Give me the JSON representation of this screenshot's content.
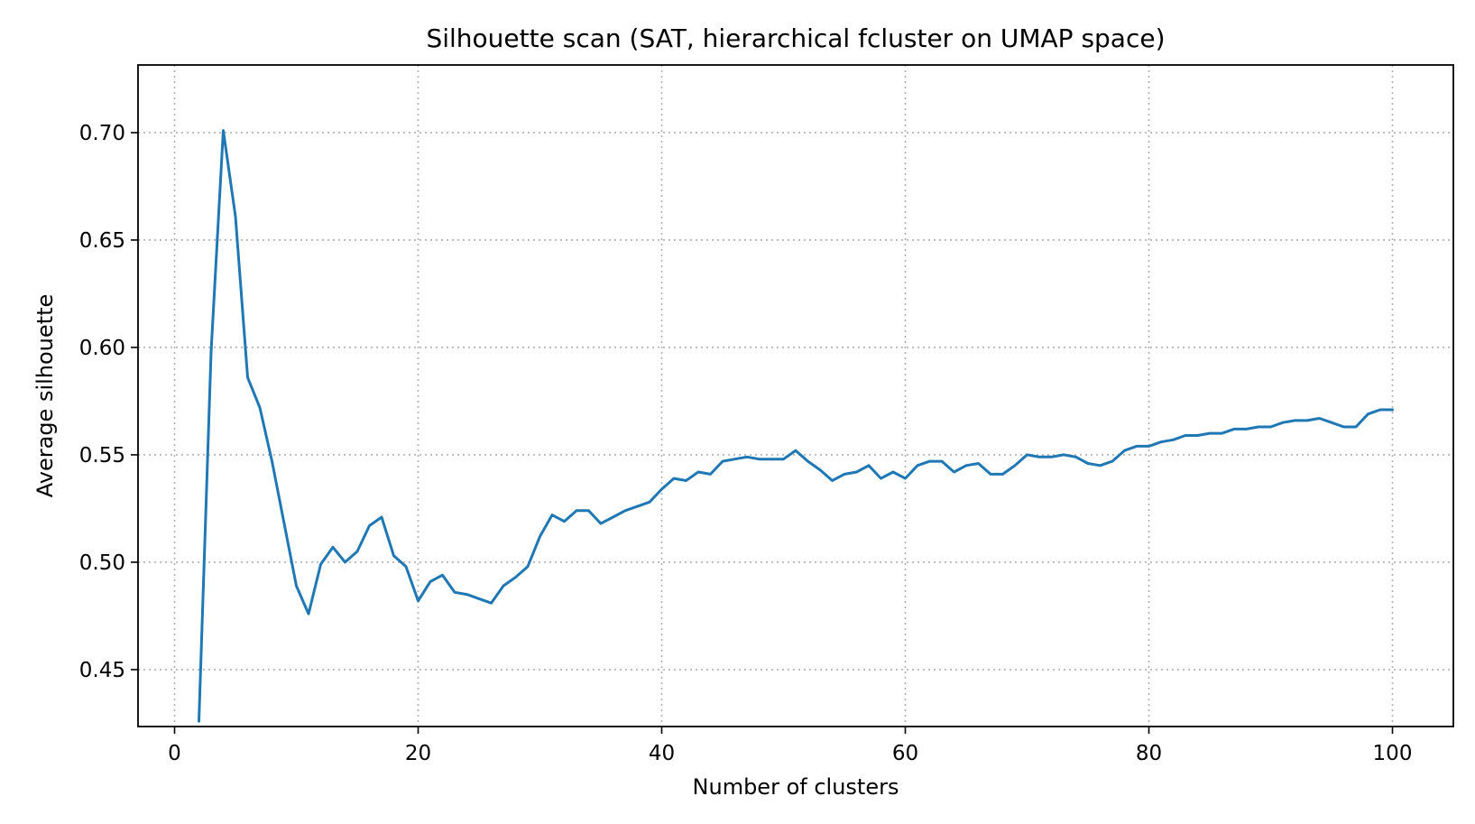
{
  "chart_data": {
    "type": "line",
    "title": "Silhouette scan (SAT, hierarchical fcluster on UMAP space)",
    "xlabel": "Number of clusters",
    "ylabel": "Average silhouette",
    "xlim": [
      -3,
      105
    ],
    "ylim": [
      0.4235,
      0.7315
    ],
    "xticks": [
      0,
      20,
      40,
      60,
      80,
      100
    ],
    "xtick_labels": [
      "0",
      "20",
      "40",
      "60",
      "80",
      "100"
    ],
    "yticks": [
      0.45,
      0.5,
      0.55,
      0.6,
      0.65,
      0.7
    ],
    "ytick_labels": [
      "0.45",
      "0.50",
      "0.55",
      "0.60",
      "0.65",
      "0.70"
    ],
    "grid": true,
    "series": [
      {
        "color": "#1f77b4",
        "x": [
          2,
          3,
          4,
          5,
          6,
          7,
          8,
          9,
          10,
          11,
          12,
          13,
          14,
          15,
          16,
          17,
          18,
          19,
          20,
          21,
          22,
          23,
          24,
          25,
          26,
          27,
          28,
          29,
          30,
          31,
          32,
          33,
          34,
          35,
          36,
          37,
          38,
          39,
          40,
          41,
          42,
          43,
          44,
          45,
          46,
          47,
          48,
          49,
          50,
          51,
          52,
          53,
          54,
          55,
          56,
          57,
          58,
          59,
          60,
          61,
          62,
          63,
          64,
          65,
          66,
          67,
          68,
          69,
          70,
          71,
          72,
          73,
          74,
          75,
          76,
          77,
          78,
          79,
          80,
          81,
          82,
          83,
          84,
          85,
          86,
          87,
          88,
          89,
          90,
          91,
          92,
          93,
          94,
          95,
          96,
          97,
          98,
          99,
          100
        ],
        "y": [
          0.426,
          0.598,
          0.701,
          0.661,
          0.586,
          0.572,
          0.547,
          0.518,
          0.489,
          0.476,
          0.499,
          0.507,
          0.5,
          0.505,
          0.517,
          0.521,
          0.503,
          0.498,
          0.482,
          0.491,
          0.494,
          0.486,
          0.485,
          0.483,
          0.481,
          0.489,
          0.493,
          0.498,
          0.512,
          0.522,
          0.519,
          0.524,
          0.524,
          0.518,
          0.521,
          0.524,
          0.526,
          0.528,
          0.534,
          0.539,
          0.538,
          0.542,
          0.541,
          0.547,
          0.548,
          0.549,
          0.548,
          0.548,
          0.548,
          0.552,
          0.547,
          0.543,
          0.538,
          0.541,
          0.542,
          0.545,
          0.539,
          0.542,
          0.539,
          0.545,
          0.547,
          0.547,
          0.542,
          0.545,
          0.546,
          0.541,
          0.541,
          0.545,
          0.55,
          0.549,
          0.549,
          0.55,
          0.549,
          0.546,
          0.545,
          0.547,
          0.552,
          0.554,
          0.554,
          0.556,
          0.557,
          0.559,
          0.559,
          0.56,
          0.56,
          0.562,
          0.562,
          0.563,
          0.563,
          0.565,
          0.566,
          0.566,
          0.567,
          0.565,
          0.563,
          0.563,
          0.569,
          0.571,
          0.571
        ]
      }
    ]
  }
}
